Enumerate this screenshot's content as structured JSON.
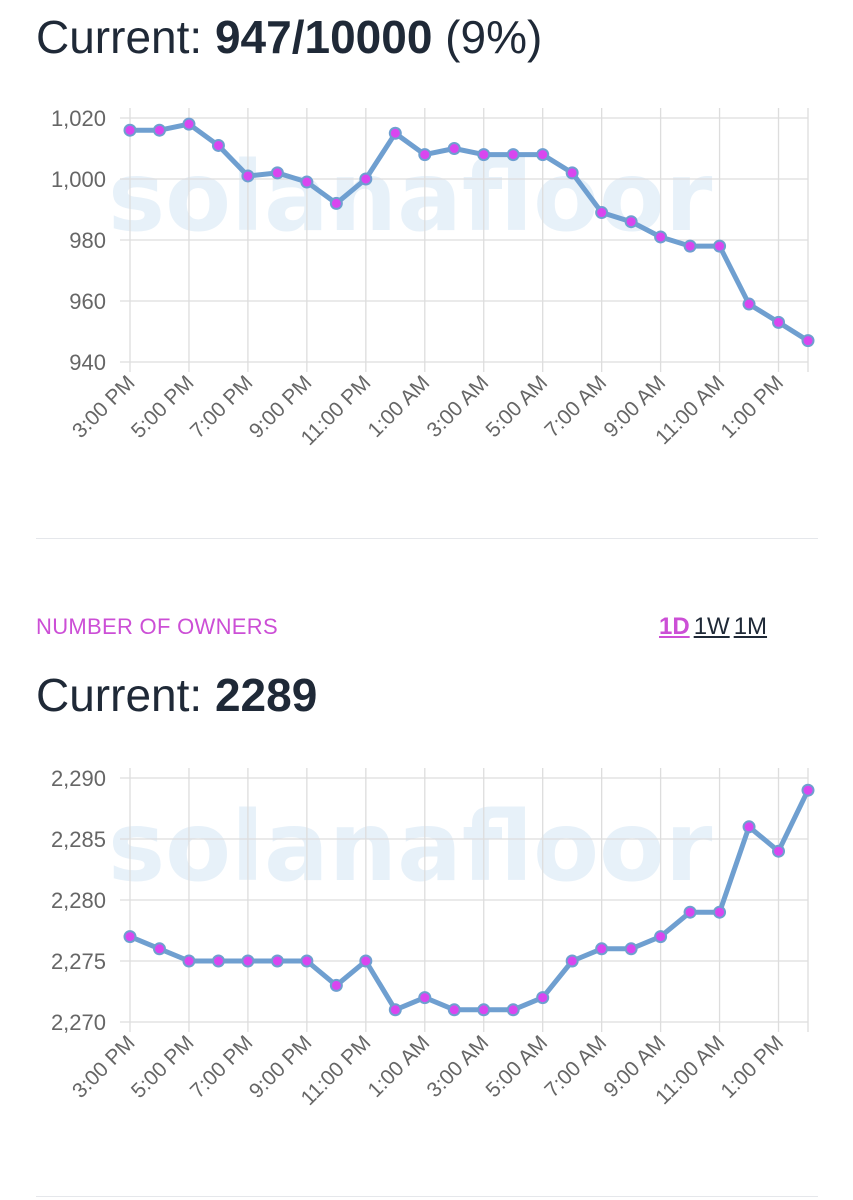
{
  "header1": {
    "label": "Current: ",
    "value": "947/10000",
    "percent": " (9%)"
  },
  "section2": {
    "title": "NUMBER OF OWNERS",
    "ranges": [
      "1D",
      "1W",
      "1M"
    ],
    "active_range": "1D"
  },
  "header2": {
    "label": "Current: ",
    "value": "2289"
  },
  "watermark": "solanafloor",
  "colors": {
    "line": "#6f9fd0",
    "point_fill": "#d946ef",
    "grid": "#dddddd",
    "accent": "#cc4fd6",
    "text": "#1f2937"
  },
  "chart_data": [
    {
      "type": "line",
      "title": "",
      "xlabel": "",
      "ylabel": "",
      "ylim": [
        940,
        1020
      ],
      "yticks": [
        940,
        960,
        980,
        1000,
        1020
      ],
      "ytick_labels": [
        "940",
        "960",
        "980",
        "1,000",
        "1,020"
      ],
      "x_tick_labels": [
        "3:00 PM",
        "5:00 PM",
        "7:00 PM",
        "9:00 PM",
        "11:00 PM",
        "1:00 AM",
        "3:00 AM",
        "5:00 AM",
        "7:00 AM",
        "9:00 AM",
        "11:00 AM",
        "1:00 PM"
      ],
      "x_hours": [
        0,
        1,
        2,
        3,
        4,
        5,
        6,
        7,
        8,
        9,
        10,
        11,
        12,
        13,
        14,
        15,
        16,
        17,
        18,
        19,
        20,
        21,
        22,
        23
      ],
      "values": [
        1016,
        1016,
        1018,
        1011,
        1001,
        1002,
        999,
        992,
        1000,
        1015,
        1008,
        1010,
        1008,
        1008,
        1008,
        1002,
        989,
        986,
        981,
        978,
        978,
        959,
        953,
        947
      ]
    },
    {
      "type": "line",
      "title": "",
      "xlabel": "",
      "ylabel": "",
      "ylim": [
        2270,
        2290
      ],
      "yticks": [
        2270,
        2275,
        2280,
        2285,
        2290
      ],
      "ytick_labels": [
        "2,270",
        "2,275",
        "2,280",
        "2,285",
        "2,290"
      ],
      "x_tick_labels": [
        "3:00 PM",
        "5:00 PM",
        "7:00 PM",
        "9:00 PM",
        "11:00 PM",
        "1:00 AM",
        "3:00 AM",
        "5:00 AM",
        "7:00 AM",
        "9:00 AM",
        "11:00 AM",
        "1:00 PM"
      ],
      "x_hours": [
        0,
        1,
        2,
        3,
        4,
        5,
        6,
        7,
        8,
        9,
        10,
        11,
        12,
        13,
        14,
        15,
        16,
        17,
        18,
        19,
        20,
        21,
        22,
        23
      ],
      "values": [
        2277,
        2276,
        2275,
        2275,
        2275,
        2275,
        2275,
        2273,
        2275,
        2271,
        2272,
        2271,
        2271,
        2271,
        2272,
        2275,
        2276,
        2276,
        2277,
        2279,
        2279,
        2286,
        2284,
        2289
      ]
    }
  ]
}
